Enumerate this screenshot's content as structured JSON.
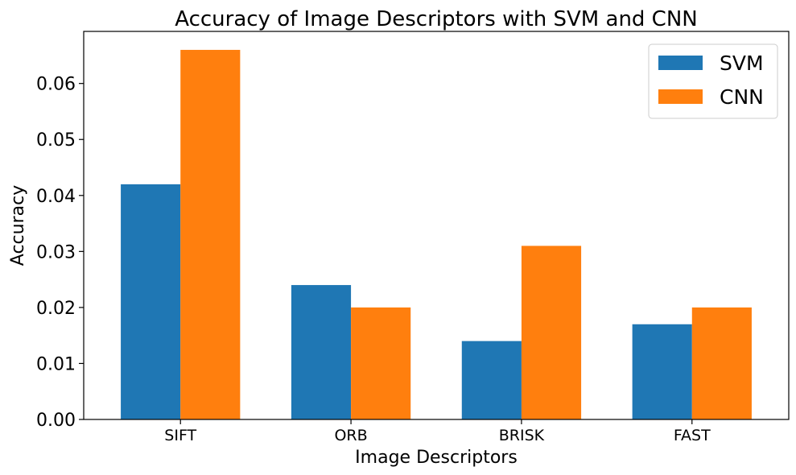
{
  "chart_data": {
    "type": "bar",
    "title": "Accuracy of Image Descriptors with SVM and CNN",
    "xlabel": "Image Descriptors",
    "ylabel": "Accuracy",
    "categories": [
      "SIFT",
      "ORB",
      "BRISK",
      "FAST"
    ],
    "series": [
      {
        "name": "SVM",
        "values": [
          0.042,
          0.024,
          0.014,
          0.017
        ],
        "color": "#1f77b4"
      },
      {
        "name": "CNN",
        "values": [
          0.066,
          0.02,
          0.031,
          0.02
        ],
        "color": "#ff7f0e"
      }
    ],
    "ylim": [
      0,
      0.0693
    ],
    "yticks": [
      0.0,
      0.01,
      0.02,
      0.03,
      0.04,
      0.05,
      0.06
    ],
    "ytick_labels": [
      "0.00",
      "0.01",
      "0.02",
      "0.03",
      "0.04",
      "0.05",
      "0.06"
    ],
    "grid": false,
    "legend_position": "top-right"
  }
}
